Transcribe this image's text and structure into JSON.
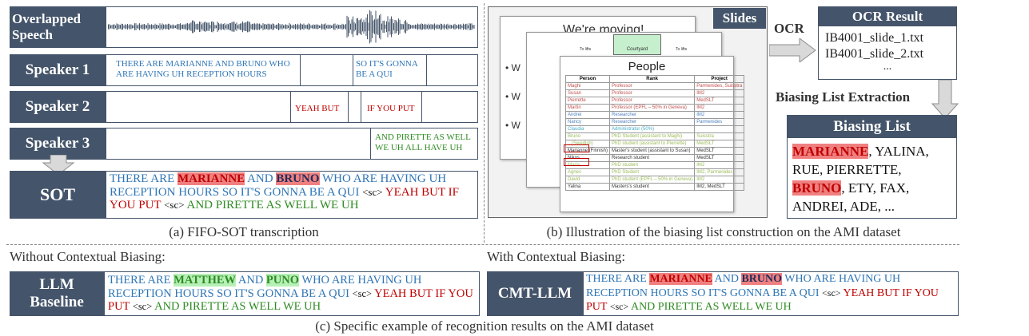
{
  "panel_a": {
    "rows": [
      {
        "label": "Overlapped Speech"
      },
      {
        "label": "Speaker 1"
      },
      {
        "label": "Speaker 2"
      },
      {
        "label": "Speaker 3"
      }
    ],
    "speaker1_seg1": "THERE ARE MARIANNE AND BRUNO WHO ARE HAVING UH RECEPTION HOURS",
    "speaker1_seg2": "SO IT'S GONNA BE A QUI",
    "speaker2_seg1": "YEAH BUT",
    "speaker2_seg2": "IF YOU PUT",
    "speaker3_seg1": "AND PIRETTE AS WELL WE UH ALL HAVE UH",
    "sot_label": "SOT",
    "sot_text": {
      "a": "THERE ARE ",
      "name1": "MARIANNE",
      "b": " AND ",
      "name2": "BRUNO",
      "c": " WHO ARE HAVING UH RECEPTION HOURS SO IT'S GONNA BE A QUI ",
      "sc1": "<sc>",
      "d": " YEAH BUT IF YOU PUT ",
      "sc2": "<sc>",
      "e": " AND PIRETTE AS WELL WE UH"
    },
    "caption": "(a) FIFO-SOT transcription"
  },
  "panel_b": {
    "slides_label": "Slides",
    "slide_title_back": "We're moving!",
    "slide_back_labels": [
      "To lifts",
      "Courtyard",
      "To lifts"
    ],
    "slide_front_title": "People",
    "table_headers": [
      "Person",
      "Rank",
      "Project"
    ],
    "table_rows": [
      [
        "Maghi",
        "Professor",
        "Parmenides, Suisstra"
      ],
      [
        "Susan",
        "Professor",
        "IM2"
      ],
      [
        "Pierrette",
        "Professor",
        "MedSLT"
      ],
      [
        "Martin",
        "Professor (EPFL – 50% in Geneva)",
        "IM2"
      ],
      [
        "Andrei",
        "Researcher",
        "IM2"
      ],
      [
        "Nancy",
        "Researcher",
        "Parmenides"
      ],
      [
        "Claudia",
        "Administrator (50%)",
        ""
      ],
      [
        "Bruno",
        "PhD Student (assistant to Maghi)",
        "Suisstra"
      ],
      [
        "...(Swedish)",
        "PhD student (assistant to Pierrette)",
        "MedSLT"
      ],
      [
        "Marianne (Finnish)",
        "Master's student (assistant to Susan)",
        "MedSLT"
      ],
      [
        "Nikos",
        "Research student",
        "MedSLT"
      ],
      [
        "Maria",
        "PhD student",
        "IM2"
      ],
      [
        "Agnes",
        "PhD Student",
        "IM2, Parmenides"
      ],
      [
        "David",
        "PhD student (EPFL – 50% in Geneva)",
        "IM2"
      ],
      [
        "Yalina",
        "Masters's student",
        "IM2, MedSLT"
      ]
    ],
    "ocr_label": "OCR",
    "ocr_result_title": "OCR Result",
    "ocr_lines": [
      "IB4001_slide_1.txt",
      "IB4001_slide_2.txt",
      "..."
    ],
    "extraction_label": "Biasing List Extraction",
    "biasing_title": "Biasing List",
    "biasing": {
      "n1": "MARIANNE",
      "t1": ", YALINA,",
      "t2": "RUE, PIERRETTE,",
      "n2": "BRUNO",
      "t3": ", ETY, FAX,",
      "t4": "ANDREI, ADE, ..."
    },
    "caption": "(b) Illustration of the biasing list construction on the AMI dataset"
  },
  "panel_c": {
    "left_heading": "Without Contextual Biasing:",
    "right_heading": "With Contextual Biasing:",
    "baseline_label": "LLM Baseline",
    "baseline_text": {
      "a": "THERE ARE ",
      "name1": "MATTHEW",
      "b": " AND ",
      "name2": "PUNO",
      "c": " WHO ARE HAVING UH RECEPTION HOURS SO IT'S GONNA BE A QUI ",
      "sc1": "<sc>",
      "d": " YEAH BUT ",
      "d2": "IF YOU PUT ",
      "sc2": "<sc>",
      "e": " AND PIRETTE AS WELL WE UH"
    },
    "cmt_label": "CMT-LLM",
    "cmt_text": {
      "a": "THERE ARE ",
      "name1": "MARIANNE",
      "b": " AND ",
      "name2": "BRUNO",
      "c": " WHO ARE HAVING UH RECEPTION HOURS SO IT'S GONNA BE A QUI ",
      "sc1": "<sc>",
      "d": " YEAH BUT ",
      "d2": "IF YOU PUT ",
      "sc2": "<sc>",
      "e": " AND PIRETTE AS WELL WE UH"
    },
    "caption": "(c) Specific example of recognition results on the AMI dataset"
  },
  "colors": {
    "navy": "#44546a",
    "blue": "#2e75b6",
    "red": "#c00000",
    "green": "#2e8b22",
    "highlight_red": "#f08080",
    "highlight_green": "#b6f0b6"
  }
}
